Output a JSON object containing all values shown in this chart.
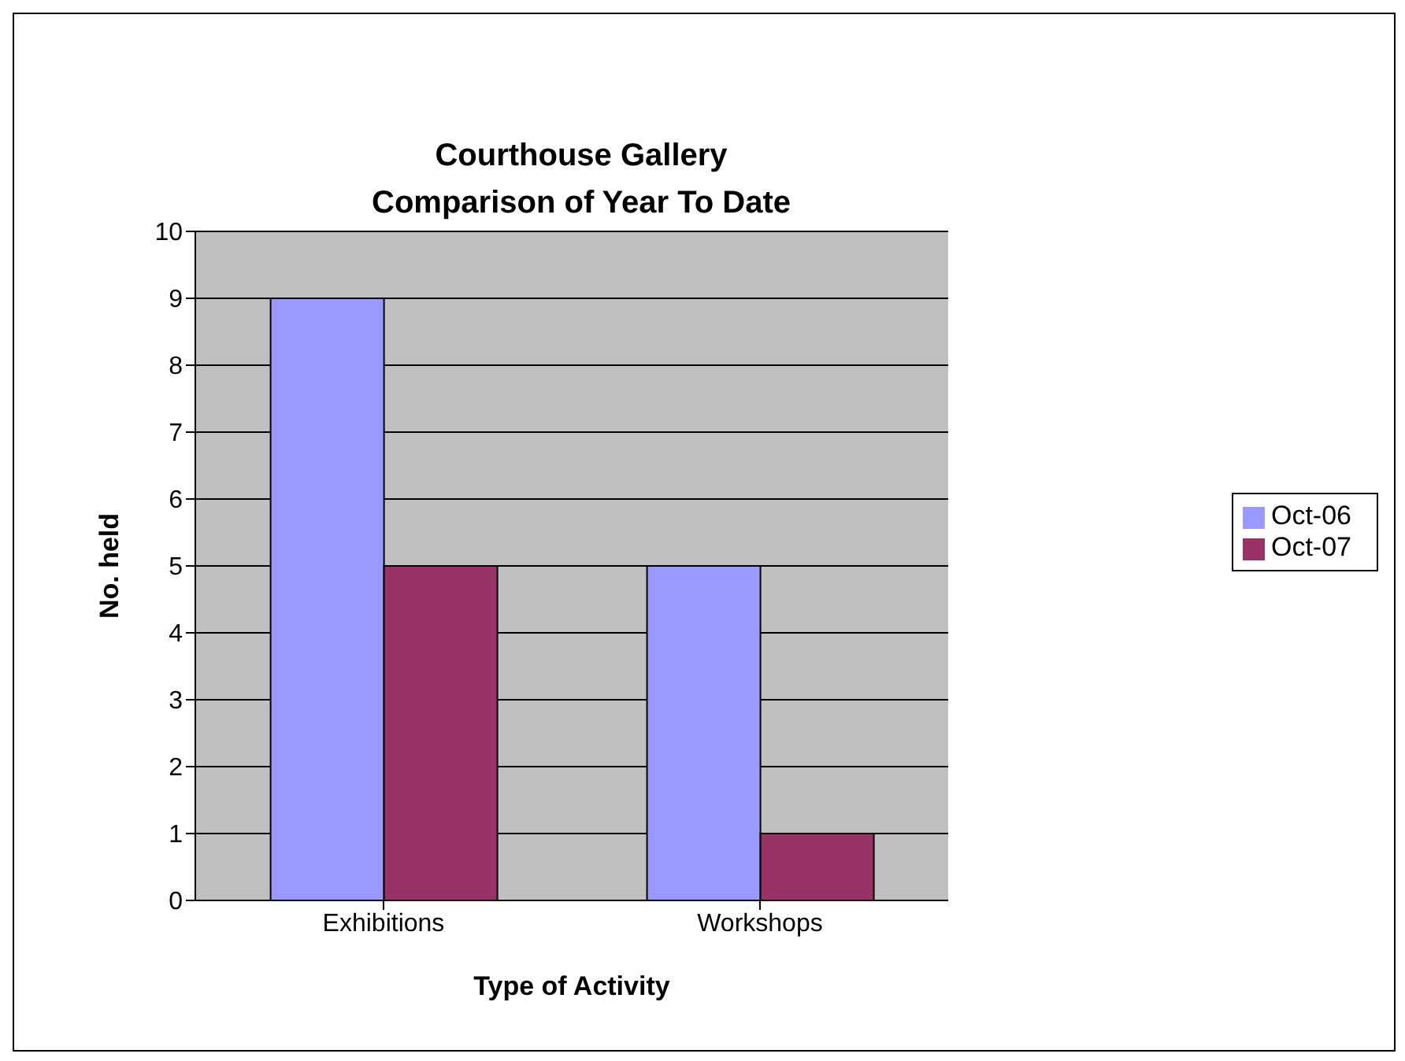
{
  "chart_data": {
    "type": "bar",
    "title": "Courthouse Gallery\nComparison of Year To Date",
    "xlabel": "Type of Activity",
    "ylabel": "No. held",
    "categories": [
      "Exhibitions",
      "Workshops"
    ],
    "series": [
      {
        "name": "Oct-06",
        "color": "#9999ff",
        "values": [
          9,
          5
        ]
      },
      {
        "name": "Oct-07",
        "color": "#993366",
        "values": [
          5,
          1
        ]
      }
    ],
    "ylim": [
      0,
      10
    ],
    "yticks": [
      0,
      1,
      2,
      3,
      4,
      5,
      6,
      7,
      8,
      9,
      10
    ],
    "grid": "y",
    "legend": "right"
  }
}
